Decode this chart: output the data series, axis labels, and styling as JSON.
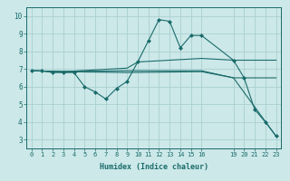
{
  "xlabel": "Humidex (Indice chaleur)",
  "bg_color": "#cce8e8",
  "grid_color": "#aacfcf",
  "line_color": "#1a6b6b",
  "xlim": [
    -0.5,
    23.5
  ],
  "ylim": [
    2.5,
    10.5
  ],
  "xticks": [
    0,
    1,
    2,
    3,
    4,
    5,
    6,
    7,
    8,
    9,
    10,
    11,
    12,
    13,
    14,
    15,
    16,
    19,
    20,
    21,
    22,
    23
  ],
  "yticks": [
    3,
    4,
    5,
    6,
    7,
    8,
    9,
    10
  ],
  "series": [
    {
      "x": [
        0,
        1,
        2,
        3,
        4,
        5,
        6,
        7,
        8,
        9,
        10,
        11,
        12,
        13,
        14,
        15,
        16,
        19,
        20,
        21,
        22,
        23
      ],
      "y": [
        6.9,
        6.9,
        6.8,
        6.8,
        6.8,
        6.0,
        5.7,
        5.3,
        5.9,
        6.3,
        7.4,
        8.6,
        9.8,
        9.7,
        8.2,
        8.9,
        8.9,
        7.5,
        6.5,
        4.7,
        4.0,
        3.2
      ],
      "has_markers": true
    },
    {
      "x": [
        0,
        3,
        9,
        10,
        16,
        19,
        23
      ],
      "y": [
        6.9,
        6.85,
        7.05,
        7.4,
        7.6,
        7.5,
        7.5
      ],
      "has_markers": false
    },
    {
      "x": [
        0,
        3,
        9,
        16,
        19,
        23
      ],
      "y": [
        6.9,
        6.85,
        6.9,
        6.9,
        6.5,
        6.5
      ],
      "has_markers": false
    },
    {
      "x": [
        0,
        3,
        9,
        16,
        19,
        23
      ],
      "y": [
        6.9,
        6.85,
        6.8,
        6.85,
        6.5,
        3.2
      ],
      "has_markers": false
    }
  ]
}
